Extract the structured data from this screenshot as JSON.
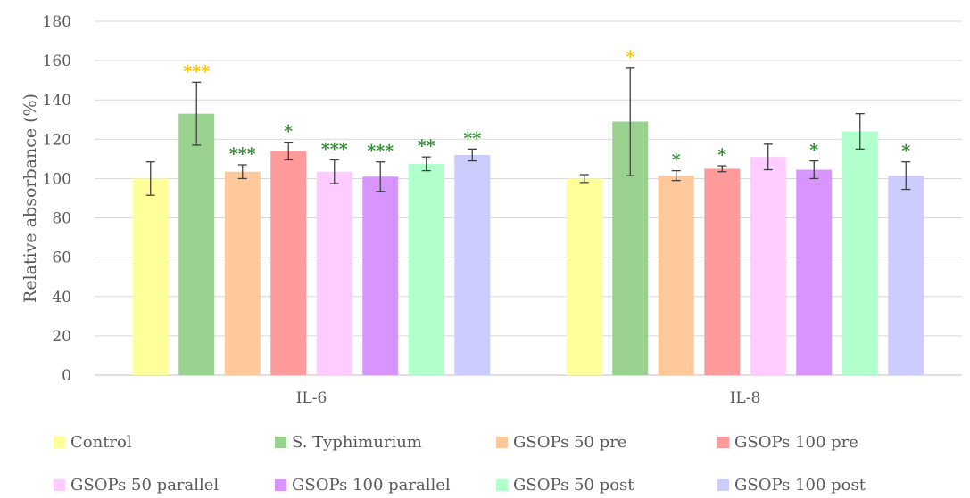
{
  "chart_data": {
    "type": "bar",
    "title": "",
    "xlabel": "",
    "ylabel": "Relative absorbance (%)",
    "ylim": [
      0,
      180
    ],
    "yticks": [
      0,
      20,
      40,
      60,
      80,
      100,
      120,
      140,
      160,
      180
    ],
    "grid": true,
    "legend_position": "bottom",
    "categories": [
      "IL-6",
      "IL-8"
    ],
    "series": [
      {
        "name": "Control",
        "color": "#FFFF99",
        "values": [
          100,
          100
        ],
        "errors": [
          8.5,
          2
        ],
        "significance": [
          "",
          ""
        ],
        "significance_color": [
          "",
          ""
        ]
      },
      {
        "name": "S. Typhimurium",
        "color": "#99D18F",
        "values": [
          133,
          129
        ],
        "errors": [
          16,
          27.5
        ],
        "significance": [
          "***",
          "*"
        ],
        "significance_color": [
          "#FFC000",
          "#FFC000"
        ]
      },
      {
        "name": "GSOPs 50 pre",
        "color": "#FFC99C",
        "values": [
          103.5,
          101.5
        ],
        "errors": [
          3.5,
          2.5
        ],
        "significance": [
          "***",
          "*"
        ],
        "significance_color": [
          "#2E8B2E",
          "#2E8B2E"
        ]
      },
      {
        "name": "GSOPs 100 pre",
        "color": "#FF9A9A",
        "values": [
          114,
          105
        ],
        "errors": [
          4.5,
          1.5
        ],
        "significance": [
          "*",
          "*"
        ],
        "significance_color": [
          "#2E8B2E",
          "#2E8B2E"
        ]
      },
      {
        "name": "GSOPs 50 parallel",
        "color": "#FFCCFF",
        "values": [
          103.5,
          111
        ],
        "errors": [
          6,
          6.5
        ],
        "significance": [
          "***",
          ""
        ],
        "significance_color": [
          "#2E8B2E",
          ""
        ]
      },
      {
        "name": "GSOPs 100 parallel",
        "color": "#D895FF",
        "values": [
          101,
          104.5
        ],
        "errors": [
          7.5,
          4.5
        ],
        "significance": [
          "***",
          "*"
        ],
        "significance_color": [
          "#2E8B2E",
          "#2E8B2E"
        ]
      },
      {
        "name": "GSOPs 50 post",
        "color": "#B0FFCC",
        "values": [
          107.5,
          124
        ],
        "errors": [
          3.5,
          9
        ],
        "significance": [
          "**",
          ""
        ],
        "significance_color": [
          "#2E8B2E",
          ""
        ]
      },
      {
        "name": "GSOPs 100 post",
        "color": "#CCCCFF",
        "values": [
          112,
          101.5
        ],
        "errors": [
          3,
          7
        ],
        "significance": [
          "**",
          "*"
        ],
        "significance_color": [
          "#2E8B2E",
          "#2E8B2E"
        ]
      }
    ]
  }
}
